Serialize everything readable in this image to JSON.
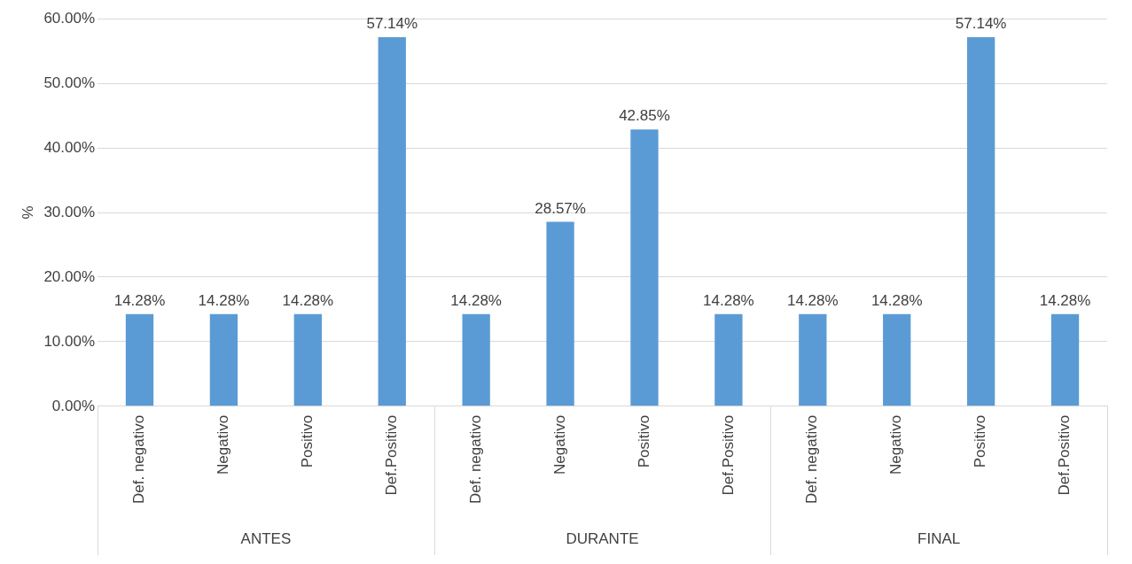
{
  "chart_data": {
    "type": "bar",
    "ylabel": "%",
    "categories": [
      "Def. negativo",
      "Negativo",
      "Positivo",
      "Def.Positivo",
      "Def. negativo",
      "Negativo",
      "Positivo",
      "Def.Positivo",
      "Def. negativo",
      "Negativo",
      "Positivo",
      "Def.Positivo"
    ],
    "values": [
      14.28,
      14.28,
      14.28,
      57.14,
      14.28,
      28.57,
      42.85,
      14.28,
      14.28,
      14.28,
      57.14,
      14.28
    ],
    "value_labels": [
      "14.28%",
      "14.28%",
      "14.28%",
      "57.14%",
      "14.28%",
      "28.57%",
      "42.85%",
      "14.28%",
      "14.28%",
      "14.28%",
      "57.14%",
      "14.28%"
    ],
    "color": "#5b9bd5",
    "ylim": [
      0,
      60
    ],
    "yticks": [
      {
        "value": 0,
        "label": "0.00%"
      },
      {
        "value": 10,
        "label": "10.00%"
      },
      {
        "value": 20,
        "label": "20.00%"
      },
      {
        "value": 30,
        "label": "30.00%"
      },
      {
        "value": 40,
        "label": "40.00%"
      },
      {
        "value": 50,
        "label": "50.00%"
      },
      {
        "value": 60,
        "label": "60.00%"
      }
    ],
    "grid": "y",
    "legend": false,
    "annotations": [
      "ANTES",
      "DURANTE",
      "FINAL"
    ]
  }
}
